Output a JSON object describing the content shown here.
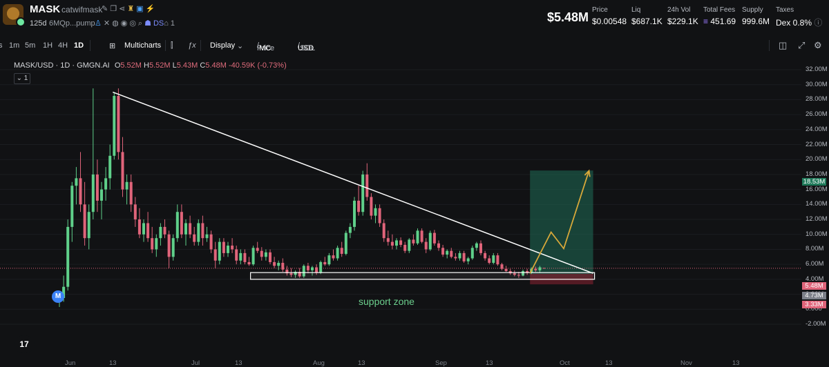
{
  "header": {
    "name": "MASK",
    "ticker": "catwifmask",
    "age": "125d",
    "address": "6MQp...pump",
    "ds_label": "DS",
    "holders_count": "1",
    "market_cap": "$5.48M",
    "stats": [
      {
        "label": "Price",
        "value": "$0.00548"
      },
      {
        "label": "Liq",
        "value": "$687.1K"
      },
      {
        "label": "24h Vol",
        "value": "$229.1K"
      },
      {
        "label": "Total Fees",
        "value": "451.69"
      },
      {
        "label": "Supply",
        "value": "999.6M"
      },
      {
        "label": "Taxes",
        "value": "Dex 0.8%"
      }
    ]
  },
  "toolbar": {
    "intervals": [
      "s",
      "1m",
      "5m",
      "1H",
      "4H",
      "1D"
    ],
    "active_interval": "1D",
    "multicharts": "Multicharts",
    "display": "Display",
    "price_label": "Price",
    "mc_label": "MC",
    "usd_label": "USD",
    "sol_label": "SOL"
  },
  "legend": {
    "pair": "MASK/USD · 1D · GMGN.AI",
    "o_label": "O",
    "o": "5.52M",
    "h_label": "H",
    "h": "5.52M",
    "l_label": "L",
    "l": "5.43M",
    "c_label": "C",
    "c": "5.48M",
    "change": "-40.59K (-0.73%)",
    "chip": "1"
  },
  "annotations": {
    "support_zone": "support zone",
    "marker": "M",
    "tv_logo": "17"
  },
  "colors": {
    "up": "#5fd08a",
    "down": "#e0647a",
    "trendline": "#ffffff",
    "projection": "#d8a93a",
    "target_zone": "#1f6b55",
    "stop_zone": "#6b1f2a",
    "background": "#111214"
  },
  "chart_data": {
    "type": "candlestick",
    "title": "MASK/USD · 1D · GMGN.AI",
    "y_unit": "market cap (USD)",
    "ylim": [
      -2000000,
      32500000
    ],
    "y_ticks": [
      "32.00M",
      "30.00M",
      "28.00M",
      "26.00M",
      "24.00M",
      "22.00M",
      "20.00M",
      "18.00M",
      "16.00M",
      "14.00M",
      "12.00M",
      "10.00M",
      "8.00M",
      "6.00M",
      "4.00M",
      "2.00M",
      "0.000",
      "-2.00M"
    ],
    "price_badges": [
      {
        "label": "18.53M",
        "value": 18530000,
        "color": "#1f7a5a"
      },
      {
        "label": "5.48M",
        "value": 5480000,
        "color": "#e0647a"
      },
      {
        "label": "4.73M",
        "value": 4730000,
        "color": "#7c8089"
      },
      {
        "label": "3.33M",
        "value": 3330000,
        "color": "#e0647a"
      }
    ],
    "x_ticks": [
      "Jun",
      "13",
      "Jul",
      "13",
      "Aug",
      "13",
      "Sep",
      "13",
      "Oct",
      "13",
      "Nov",
      "13"
    ],
    "candles": [
      {
        "o": 1.0,
        "h": 2.0,
        "l": 0.3,
        "c": 1.5
      },
      {
        "o": 1.5,
        "h": 4.5,
        "l": 1.0,
        "c": 3.0
      },
      {
        "o": 3.0,
        "h": 12.0,
        "l": 2.5,
        "c": 11.0
      },
      {
        "o": 11.0,
        "h": 17.0,
        "l": 9.0,
        "c": 16.5
      },
      {
        "o": 16.5,
        "h": 19.0,
        "l": 14.0,
        "c": 17.5
      },
      {
        "o": 17.5,
        "h": 21.0,
        "l": 13.0,
        "c": 14.0
      },
      {
        "o": 14.0,
        "h": 17.0,
        "l": 8.5,
        "c": 9.5
      },
      {
        "o": 9.5,
        "h": 14.0,
        "l": 8.0,
        "c": 13.0
      },
      {
        "o": 13.0,
        "h": 29.5,
        "l": 12.0,
        "c": 18.0
      },
      {
        "o": 18.0,
        "h": 20.0,
        "l": 13.0,
        "c": 14.5
      },
      {
        "o": 14.5,
        "h": 17.0,
        "l": 12.0,
        "c": 16.0
      },
      {
        "o": 16.0,
        "h": 19.0,
        "l": 14.5,
        "c": 17.5
      },
      {
        "o": 17.5,
        "h": 22.0,
        "l": 16.0,
        "c": 20.5
      },
      {
        "o": 20.5,
        "h": 29.0,
        "l": 20.0,
        "c": 28.5
      },
      {
        "o": 28.5,
        "h": 29.5,
        "l": 20.0,
        "c": 21.0
      },
      {
        "o": 21.0,
        "h": 23.0,
        "l": 15.0,
        "c": 16.0
      },
      {
        "o": 16.0,
        "h": 18.0,
        "l": 14.0,
        "c": 17.0
      },
      {
        "o": 17.0,
        "h": 18.0,
        "l": 13.0,
        "c": 14.0
      },
      {
        "o": 14.0,
        "h": 15.0,
        "l": 11.0,
        "c": 12.0
      },
      {
        "o": 12.0,
        "h": 13.5,
        "l": 9.5,
        "c": 10.0
      },
      {
        "o": 10.0,
        "h": 12.0,
        "l": 9.0,
        "c": 11.5
      },
      {
        "o": 11.5,
        "h": 13.0,
        "l": 9.0,
        "c": 9.5
      },
      {
        "o": 9.5,
        "h": 11.0,
        "l": 7.5,
        "c": 8.0
      },
      {
        "o": 8.0,
        "h": 10.0,
        "l": 7.0,
        "c": 9.5
      },
      {
        "o": 9.5,
        "h": 11.5,
        "l": 8.5,
        "c": 11.0
      },
      {
        "o": 11.0,
        "h": 12.0,
        "l": 9.5,
        "c": 10.0
      },
      {
        "o": 10.0,
        "h": 10.5,
        "l": 5.5,
        "c": 7.0
      },
      {
        "o": 7.0,
        "h": 10.0,
        "l": 6.5,
        "c": 9.5
      },
      {
        "o": 9.5,
        "h": 14.0,
        "l": 9.0,
        "c": 13.0
      },
      {
        "o": 13.0,
        "h": 14.0,
        "l": 9.5,
        "c": 10.0
      },
      {
        "o": 10.0,
        "h": 12.0,
        "l": 8.5,
        "c": 11.5
      },
      {
        "o": 11.5,
        "h": 12.5,
        "l": 9.5,
        "c": 10.0
      },
      {
        "o": 10.0,
        "h": 11.0,
        "l": 8.5,
        "c": 9.0
      },
      {
        "o": 9.0,
        "h": 12.0,
        "l": 8.5,
        "c": 11.5
      },
      {
        "o": 11.5,
        "h": 12.5,
        "l": 8.5,
        "c": 9.5
      },
      {
        "o": 9.5,
        "h": 11.0,
        "l": 9.0,
        "c": 10.0
      },
      {
        "o": 10.0,
        "h": 10.5,
        "l": 7.5,
        "c": 8.0
      },
      {
        "o": 8.0,
        "h": 9.0,
        "l": 5.5,
        "c": 6.5
      },
      {
        "o": 6.5,
        "h": 9.5,
        "l": 6.0,
        "c": 9.0
      },
      {
        "o": 9.0,
        "h": 9.5,
        "l": 7.0,
        "c": 7.5
      },
      {
        "o": 7.5,
        "h": 9.0,
        "l": 7.0,
        "c": 8.5
      },
      {
        "o": 8.5,
        "h": 9.5,
        "l": 7.5,
        "c": 8.0
      },
      {
        "o": 8.0,
        "h": 8.5,
        "l": 6.0,
        "c": 6.5
      },
      {
        "o": 6.5,
        "h": 8.0,
        "l": 6.0,
        "c": 7.5
      },
      {
        "o": 7.5,
        "h": 8.0,
        "l": 6.0,
        "c": 6.3
      },
      {
        "o": 6.3,
        "h": 7.0,
        "l": 5.8,
        "c": 6.0
      },
      {
        "o": 6.0,
        "h": 8.5,
        "l": 5.8,
        "c": 8.2
      },
      {
        "o": 8.2,
        "h": 9.0,
        "l": 7.5,
        "c": 7.8
      },
      {
        "o": 7.8,
        "h": 8.3,
        "l": 6.5,
        "c": 7.0
      },
      {
        "o": 7.0,
        "h": 8.0,
        "l": 6.5,
        "c": 7.6
      },
      {
        "o": 7.6,
        "h": 8.0,
        "l": 6.0,
        "c": 6.3
      },
      {
        "o": 6.3,
        "h": 7.0,
        "l": 5.5,
        "c": 5.8
      },
      {
        "o": 5.8,
        "h": 6.5,
        "l": 5.2,
        "c": 6.2
      },
      {
        "o": 6.2,
        "h": 6.8,
        "l": 5.0,
        "c": 5.3
      },
      {
        "o": 5.3,
        "h": 5.8,
        "l": 4.5,
        "c": 4.8
      },
      {
        "o": 4.8,
        "h": 5.5,
        "l": 4.3,
        "c": 4.6
      },
      {
        "o": 4.6,
        "h": 5.2,
        "l": 4.2,
        "c": 5.0
      },
      {
        "o": 5.0,
        "h": 5.5,
        "l": 4.2,
        "c": 4.4
      },
      {
        "o": 4.4,
        "h": 6.0,
        "l": 4.2,
        "c": 5.8
      },
      {
        "o": 5.8,
        "h": 6.2,
        "l": 4.8,
        "c": 5.2
      },
      {
        "o": 5.2,
        "h": 5.8,
        "l": 4.5,
        "c": 5.6
      },
      {
        "o": 5.6,
        "h": 6.0,
        "l": 4.6,
        "c": 4.9
      },
      {
        "o": 4.9,
        "h": 6.5,
        "l": 4.7,
        "c": 6.3
      },
      {
        "o": 6.3,
        "h": 7.0,
        "l": 5.8,
        "c": 6.0
      },
      {
        "o": 6.0,
        "h": 7.5,
        "l": 5.8,
        "c": 7.2
      },
      {
        "o": 7.2,
        "h": 8.0,
        "l": 6.5,
        "c": 6.8
      },
      {
        "o": 6.8,
        "h": 8.5,
        "l": 6.5,
        "c": 8.2
      },
      {
        "o": 8.2,
        "h": 9.0,
        "l": 7.0,
        "c": 7.4
      },
      {
        "o": 7.4,
        "h": 10.5,
        "l": 7.2,
        "c": 10.2
      },
      {
        "o": 10.2,
        "h": 11.5,
        "l": 9.5,
        "c": 11.0
      },
      {
        "o": 11.0,
        "h": 15.0,
        "l": 10.5,
        "c": 14.5
      },
      {
        "o": 14.5,
        "h": 16.5,
        "l": 12.5,
        "c": 13.0
      },
      {
        "o": 13.0,
        "h": 18.5,
        "l": 12.5,
        "c": 18.0
      },
      {
        "o": 18.0,
        "h": 19.5,
        "l": 14.5,
        "c": 15.0
      },
      {
        "o": 15.0,
        "h": 15.5,
        "l": 12.0,
        "c": 12.5
      },
      {
        "o": 12.5,
        "h": 14.0,
        "l": 11.5,
        "c": 13.5
      },
      {
        "o": 13.5,
        "h": 14.0,
        "l": 11.0,
        "c": 11.5
      },
      {
        "o": 11.5,
        "h": 12.0,
        "l": 9.0,
        "c": 9.5
      },
      {
        "o": 9.5,
        "h": 10.5,
        "l": 8.5,
        "c": 9.0
      },
      {
        "o": 9.0,
        "h": 10.0,
        "l": 8.0,
        "c": 8.5
      },
      {
        "o": 8.5,
        "h": 9.5,
        "l": 8.0,
        "c": 9.2
      },
      {
        "o": 9.2,
        "h": 9.6,
        "l": 8.3,
        "c": 8.6
      },
      {
        "o": 8.6,
        "h": 9.0,
        "l": 7.5,
        "c": 7.8
      },
      {
        "o": 7.8,
        "h": 9.5,
        "l": 7.5,
        "c": 9.3
      },
      {
        "o": 9.3,
        "h": 10.0,
        "l": 8.5,
        "c": 8.8
      },
      {
        "o": 8.8,
        "h": 10.8,
        "l": 8.6,
        "c": 10.5
      },
      {
        "o": 10.5,
        "h": 10.8,
        "l": 8.8,
        "c": 9.0
      },
      {
        "o": 9.0,
        "h": 9.5,
        "l": 7.5,
        "c": 8.0
      },
      {
        "o": 8.0,
        "h": 10.5,
        "l": 7.8,
        "c": 10.2
      },
      {
        "o": 10.2,
        "h": 10.6,
        "l": 8.5,
        "c": 8.8
      },
      {
        "o": 8.8,
        "h": 9.2,
        "l": 7.8,
        "c": 8.2
      },
      {
        "o": 8.2,
        "h": 8.6,
        "l": 7.0,
        "c": 7.3
      },
      {
        "o": 7.3,
        "h": 8.0,
        "l": 6.8,
        "c": 7.8
      },
      {
        "o": 7.8,
        "h": 8.2,
        "l": 6.8,
        "c": 7.0
      },
      {
        "o": 7.0,
        "h": 7.5,
        "l": 6.5,
        "c": 6.8
      },
      {
        "o": 6.8,
        "h": 7.8,
        "l": 6.5,
        "c": 7.5
      },
      {
        "o": 7.5,
        "h": 7.8,
        "l": 6.2,
        "c": 6.4
      },
      {
        "o": 6.4,
        "h": 7.0,
        "l": 6.0,
        "c": 6.8
      },
      {
        "o": 6.8,
        "h": 8.5,
        "l": 6.6,
        "c": 8.2
      },
      {
        "o": 8.2,
        "h": 9.0,
        "l": 7.8,
        "c": 8.8
      },
      {
        "o": 8.8,
        "h": 9.2,
        "l": 7.2,
        "c": 7.5
      },
      {
        "o": 7.5,
        "h": 7.8,
        "l": 6.5,
        "c": 6.8
      },
      {
        "o": 6.8,
        "h": 7.2,
        "l": 6.0,
        "c": 6.2
      },
      {
        "o": 6.2,
        "h": 7.5,
        "l": 6.0,
        "c": 7.2
      },
      {
        "o": 7.2,
        "h": 7.5,
        "l": 5.8,
        "c": 6.0
      },
      {
        "o": 6.0,
        "h": 6.2,
        "l": 5.2,
        "c": 5.4
      },
      {
        "o": 5.4,
        "h": 5.8,
        "l": 5.0,
        "c": 5.1
      },
      {
        "o": 5.1,
        "h": 5.4,
        "l": 4.6,
        "c": 4.8
      },
      {
        "o": 4.8,
        "h": 5.2,
        "l": 4.4,
        "c": 4.6
      },
      {
        "o": 4.6,
        "h": 5.0,
        "l": 4.2,
        "c": 4.5
      },
      {
        "o": 4.5,
        "h": 5.3,
        "l": 4.4,
        "c": 5.1
      },
      {
        "o": 5.1,
        "h": 5.4,
        "l": 4.6,
        "c": 4.9
      },
      {
        "o": 4.9,
        "h": 5.6,
        "l": 4.7,
        "c": 5.4
      },
      {
        "o": 5.4,
        "h": 5.7,
        "l": 5.0,
        "c": 5.2
      },
      {
        "o": 5.2,
        "h": 5.8,
        "l": 4.9,
        "c": 5.6
      },
      {
        "o": 5.52,
        "h": 5.52,
        "l": 5.43,
        "c": 5.48
      }
    ],
    "trendline": [
      {
        "candle": 13,
        "value": 29.0
      },
      {
        "candle": 126,
        "value": 4.8
      }
    ],
    "support_zone": {
      "from_candle": 46,
      "to_candle": 126,
      "low": 4.0,
      "high": 4.9
    },
    "target_zone": {
      "from_candle": 112,
      "to_candle": 126,
      "low": 4.73,
      "high": 18.53
    },
    "stop_zone": {
      "from_candle": 112,
      "to_candle": 126,
      "low": 3.33,
      "high": 4.73
    },
    "projection": [
      {
        "candle": 112,
        "value": 4.8
      },
      {
        "candle": 117,
        "value": 10.3
      },
      {
        "candle": 120,
        "value": 8.1
      },
      {
        "candle": 126,
        "value": 18.5
      }
    ]
  }
}
